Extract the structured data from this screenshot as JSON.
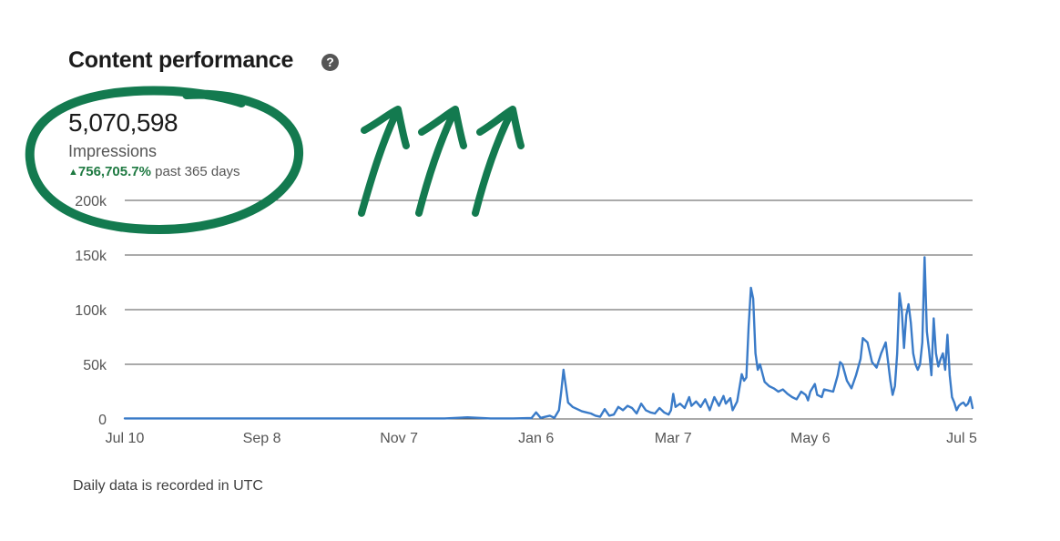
{
  "header": {
    "title": "Content performance",
    "help_icon": "question-circle-icon"
  },
  "metric": {
    "value": "5,070,598",
    "label": "Impressions",
    "change_pct": "756,705.7%",
    "change_suffix": "past 365 days",
    "change_icon": "triangle-up-icon"
  },
  "footnote": "Daily data is recorded in UTC",
  "colors": {
    "line": "#3a7bc8",
    "accent_green": "#1f7a42",
    "annotation": "#137a4f",
    "grid": "#555555"
  },
  "chart_data": {
    "type": "line",
    "title": "",
    "xlabel": "",
    "ylabel": "",
    "ylim": [
      0,
      200000
    ],
    "yticks": [
      {
        "value": 0,
        "label": "0"
      },
      {
        "value": 50000,
        "label": "50k"
      },
      {
        "value": 100000,
        "label": "100k"
      },
      {
        "value": 150000,
        "label": "150k"
      },
      {
        "value": 200000,
        "label": "200k"
      }
    ],
    "xrange": [
      "Jul 10",
      "Jul 5"
    ],
    "xticks": [
      {
        "label": "Jul 10",
        "day": 0
      },
      {
        "label": "Sep 8",
        "day": 60
      },
      {
        "label": "Nov 7",
        "day": 120
      },
      {
        "label": "Jan 6",
        "day": 180
      },
      {
        "label": "Mar 7",
        "day": 240
      },
      {
        "label": "May 6",
        "day": 300
      },
      {
        "label": "Jul 5",
        "day": 360
      }
    ],
    "grid": true,
    "legend": "none",
    "series": [
      {
        "values_by_day": [
          [
            0,
            500
          ],
          [
            20,
            500
          ],
          [
            40,
            500
          ],
          [
            60,
            500
          ],
          [
            80,
            500
          ],
          [
            100,
            500
          ],
          [
            120,
            500
          ],
          [
            140,
            500
          ],
          [
            150,
            1500
          ],
          [
            160,
            500
          ],
          [
            170,
            500
          ],
          [
            178,
            800
          ],
          [
            180,
            6000
          ],
          [
            182,
            1000
          ],
          [
            186,
            3000
          ],
          [
            188,
            1000
          ],
          [
            190,
            8000
          ],
          [
            191,
            25000
          ],
          [
            192,
            45000
          ],
          [
            193,
            30000
          ],
          [
            194,
            15000
          ],
          [
            196,
            11000
          ],
          [
            198,
            9000
          ],
          [
            200,
            7000
          ],
          [
            202,
            6000
          ],
          [
            204,
            5000
          ],
          [
            206,
            3000
          ],
          [
            208,
            2000
          ],
          [
            210,
            9000
          ],
          [
            212,
            3000
          ],
          [
            214,
            4000
          ],
          [
            216,
            11000
          ],
          [
            218,
            8000
          ],
          [
            220,
            12000
          ],
          [
            222,
            10000
          ],
          [
            224,
            5000
          ],
          [
            226,
            14000
          ],
          [
            228,
            8000
          ],
          [
            230,
            6000
          ],
          [
            232,
            5000
          ],
          [
            234,
            10000
          ],
          [
            236,
            6000
          ],
          [
            238,
            4000
          ],
          [
            239,
            8000
          ],
          [
            240,
            23000
          ],
          [
            241,
            11000
          ],
          [
            243,
            14000
          ],
          [
            245,
            10000
          ],
          [
            247,
            20000
          ],
          [
            248,
            12000
          ],
          [
            250,
            16000
          ],
          [
            252,
            11000
          ],
          [
            254,
            18000
          ],
          [
            256,
            8000
          ],
          [
            258,
            20000
          ],
          [
            260,
            12000
          ],
          [
            262,
            21000
          ],
          [
            263,
            14000
          ],
          [
            265,
            19000
          ],
          [
            266,
            8000
          ],
          [
            268,
            16000
          ],
          [
            270,
            41000
          ],
          [
            271,
            35000
          ],
          [
            272,
            38000
          ],
          [
            273,
            85000
          ],
          [
            274,
            120000
          ],
          [
            275,
            110000
          ],
          [
            276,
            60000
          ],
          [
            277,
            45000
          ],
          [
            278,
            50000
          ],
          [
            280,
            34000
          ],
          [
            282,
            30000
          ],
          [
            284,
            28000
          ],
          [
            286,
            25000
          ],
          [
            288,
            27000
          ],
          [
            290,
            23000
          ],
          [
            292,
            20000
          ],
          [
            294,
            18000
          ],
          [
            296,
            25000
          ],
          [
            298,
            22000
          ],
          [
            299,
            17000
          ],
          [
            300,
            25000
          ],
          [
            302,
            32000
          ],
          [
            303,
            22000
          ],
          [
            305,
            20000
          ],
          [
            306,
            27000
          ],
          [
            308,
            26000
          ],
          [
            310,
            25000
          ],
          [
            312,
            40000
          ],
          [
            313,
            52000
          ],
          [
            314,
            50000
          ],
          [
            316,
            35000
          ],
          [
            318,
            28000
          ],
          [
            320,
            40000
          ],
          [
            322,
            55000
          ],
          [
            323,
            74000
          ],
          [
            325,
            70000
          ],
          [
            327,
            52000
          ],
          [
            329,
            47000
          ],
          [
            331,
            60000
          ],
          [
            333,
            70000
          ],
          [
            335,
            35000
          ],
          [
            336,
            22000
          ],
          [
            337,
            30000
          ],
          [
            338,
            60000
          ],
          [
            339,
            115000
          ],
          [
            340,
            100000
          ],
          [
            341,
            65000
          ],
          [
            342,
            95000
          ],
          [
            343,
            105000
          ],
          [
            344,
            88000
          ],
          [
            345,
            60000
          ],
          [
            346,
            50000
          ],
          [
            347,
            45000
          ],
          [
            348,
            50000
          ],
          [
            349,
            70000
          ],
          [
            350,
            148000
          ],
          [
            351,
            80000
          ],
          [
            352,
            62000
          ],
          [
            353,
            40000
          ],
          [
            354,
            92000
          ],
          [
            355,
            60000
          ],
          [
            356,
            48000
          ],
          [
            357,
            55000
          ],
          [
            358,
            60000
          ],
          [
            359,
            45000
          ],
          [
            360,
            77000
          ],
          [
            361,
            40000
          ],
          [
            362,
            20000
          ],
          [
            363,
            15000
          ],
          [
            364,
            8000
          ],
          [
            365,
            12000
          ],
          [
            366,
            14000
          ],
          [
            367,
            15000
          ],
          [
            368,
            12000
          ],
          [
            369,
            14000
          ],
          [
            370,
            20000
          ],
          [
            371,
            10000
          ]
        ]
      }
    ]
  }
}
